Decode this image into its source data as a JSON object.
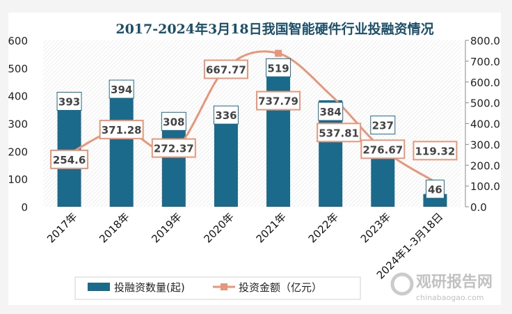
{
  "chart_data": {
    "type": "bar+line",
    "title": "2017-2024年3月18日我国智能硬件行业投融资情况",
    "categories": [
      "2017年",
      "2018年",
      "2019年",
      "2020年",
      "2021年",
      "2022年",
      "2023年",
      "2024年1-3月18日"
    ],
    "series": [
      {
        "name": "投融资数量(起)",
        "type": "bar",
        "axis": "left",
        "color": "#1b6a8c",
        "values": [
          393,
          394,
          308,
          336,
          519,
          384,
          237,
          46
        ]
      },
      {
        "name": "投资金额（亿元）",
        "type": "line",
        "axis": "right",
        "color": "#e8967a",
        "values": [
          254.6,
          371.28,
          272.37,
          667.77,
          737.79,
          537.81,
          276.67,
          119.32
        ]
      }
    ],
    "y_left": {
      "ylim": [
        0,
        600
      ],
      "ticks": [
        "0",
        "100",
        "200",
        "300",
        "400",
        "500",
        "600"
      ]
    },
    "y_right": {
      "ylim": [
        0,
        800
      ],
      "ticks": [
        "0.0",
        "100.0",
        "200.0",
        "300.0",
        "400.0",
        "500.0",
        "600.0",
        "700.0",
        "800.0"
      ]
    },
    "legend": "bottom",
    "grid": false
  },
  "watermark": {
    "name": "观研报告网",
    "url_text": "chinabaogao.com"
  }
}
